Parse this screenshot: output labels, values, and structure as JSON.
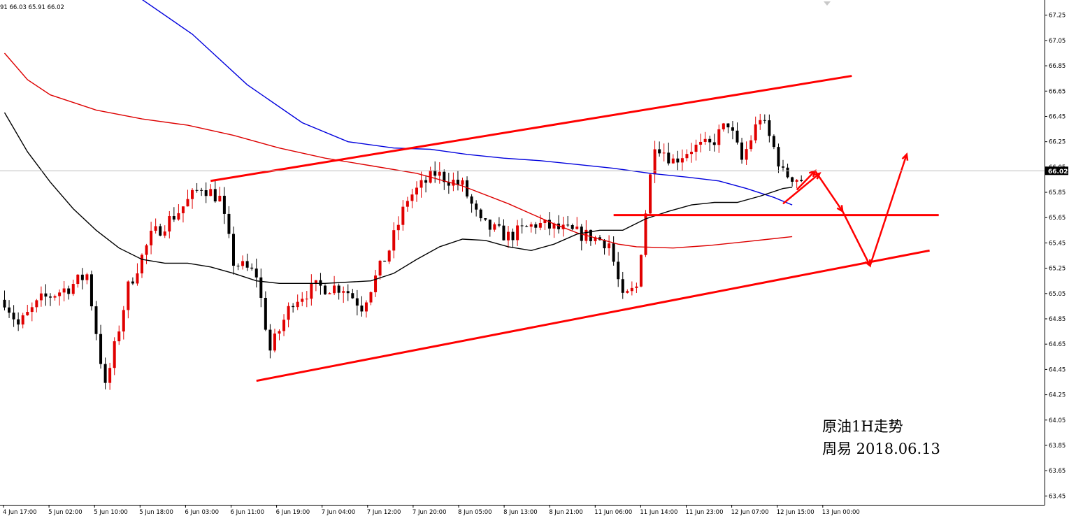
{
  "chart_data": {
    "type": "candlestick",
    "ohlc_header": "91 66.03 65.91 66.02",
    "ylim": [
      63.38,
      67.37
    ],
    "y_ticks": [
      "67.25",
      "67.05",
      "66.85",
      "66.65",
      "66.45",
      "66.25",
      "66.05",
      "65.85",
      "65.65",
      "65.45",
      "65.25",
      "65.05",
      "64.85",
      "64.65",
      "64.45",
      "64.25",
      "64.05",
      "63.85",
      "63.65",
      "63.45"
    ],
    "x_ticks": [
      "4 Jun 17:00",
      "5 Jun 02:00",
      "5 Jun 10:00",
      "5 Jun 18:00",
      "6 Jun 03:00",
      "6 Jun 11:00",
      "6 Jun 19:00",
      "7 Jun 04:00",
      "7 Jun 12:00",
      "7 Jun 20:00",
      "8 Jun 05:00",
      "8 Jun 13:00",
      "8 Jun 21:00",
      "11 Jun 06:00",
      "11 Jun 14:00",
      "11 Jun 23:00",
      "12 Jun 07:00",
      "12 Jun 15:00",
      "13 Jun 00:00"
    ],
    "bar_count": 175,
    "last_price": "66.02",
    "last_price_value": 66.02,
    "candle_up_color": "#e00000",
    "candle_down_color": "#000000",
    "bull_color": "#ff0000",
    "grid": false,
    "legend": "none",
    "moving_averages": [
      {
        "color": "#0000dd",
        "points": [
          [
            29,
            67.4
          ],
          [
            41,
            67.1
          ],
          [
            53,
            66.7
          ],
          [
            65,
            66.4
          ],
          [
            75,
            66.25
          ],
          [
            85,
            66.2
          ],
          [
            93,
            66.19
          ],
          [
            101,
            66.15
          ],
          [
            109,
            66.12
          ],
          [
            117,
            66.1
          ],
          [
            125,
            66.07
          ],
          [
            133,
            66.04
          ],
          [
            141,
            66.0
          ],
          [
            149,
            65.97
          ],
          [
            156,
            65.94
          ],
          [
            162,
            65.88
          ],
          [
            168,
            65.81
          ],
          [
            172,
            65.75
          ]
        ]
      },
      {
        "color": "#dd0000",
        "points": [
          [
            0,
            66.95
          ],
          [
            5,
            66.74
          ],
          [
            10,
            66.62
          ],
          [
            20,
            66.5
          ],
          [
            30,
            66.43
          ],
          [
            40,
            66.38
          ],
          [
            50,
            66.3
          ],
          [
            60,
            66.2
          ],
          [
            70,
            66.12
          ],
          [
            80,
            66.06
          ],
          [
            90,
            66.0
          ],
          [
            100,
            65.9
          ],
          [
            110,
            65.76
          ],
          [
            120,
            65.6
          ],
          [
            125,
            65.53
          ],
          [
            130,
            65.48
          ],
          [
            134,
            65.44
          ],
          [
            138,
            65.42
          ],
          [
            146,
            65.41
          ],
          [
            154,
            65.43
          ],
          [
            162,
            65.46
          ],
          [
            167,
            65.48
          ],
          [
            172,
            65.5
          ]
        ]
      },
      {
        "color": "#000000",
        "points": [
          [
            0,
            66.48
          ],
          [
            5,
            66.17
          ],
          [
            10,
            65.93
          ],
          [
            15,
            65.72
          ],
          [
            20,
            65.55
          ],
          [
            25,
            65.41
          ],
          [
            30,
            65.32
          ],
          [
            35,
            65.29
          ],
          [
            40,
            65.29
          ],
          [
            45,
            65.26
          ],
          [
            50,
            65.21
          ],
          [
            55,
            65.15
          ],
          [
            60,
            65.13
          ],
          [
            70,
            65.13
          ],
          [
            80,
            65.15
          ],
          [
            85,
            65.21
          ],
          [
            90,
            65.32
          ],
          [
            95,
            65.42
          ],
          [
            100,
            65.48
          ],
          [
            105,
            65.47
          ],
          [
            110,
            65.42
          ],
          [
            115,
            65.39
          ],
          [
            120,
            65.44
          ],
          [
            125,
            65.52
          ],
          [
            130,
            65.55
          ],
          [
            135,
            65.55
          ],
          [
            140,
            65.64
          ],
          [
            145,
            65.7
          ],
          [
            150,
            65.75
          ],
          [
            155,
            65.77
          ],
          [
            160,
            65.77
          ],
          [
            165,
            65.82
          ],
          [
            170,
            65.88
          ],
          [
            172,
            65.89
          ]
        ]
      }
    ],
    "annotations": {
      "trend_lines": [
        {
          "from": [
            45,
            65.94
          ],
          "to": [
            185,
            66.77
          ]
        },
        {
          "from": [
            55,
            64.36
          ],
          "to": [
            202,
            65.39
          ]
        },
        {
          "from": [
            133,
            65.67
          ],
          "to": [
            204,
            65.67
          ]
        }
      ],
      "arrows": [
        {
          "from": [
            173,
            65.87
          ],
          "to": [
            177,
            66.02
          ]
        },
        {
          "from": [
            177,
            66.02
          ],
          "to": [
            183,
            65.7
          ]
        },
        {
          "from": [
            183,
            65.7
          ],
          "to": [
            189,
            65.27
          ]
        },
        {
          "from": [
            189,
            65.27
          ],
          "to": [
            197,
            66.15
          ]
        }
      ],
      "extra_arrow": {
        "from": [
          170,
          65.76
        ],
        "to": [
          178,
          66.0
        ]
      }
    },
    "title_lines": [
      "原油1H走势",
      "周易  2018.06.13"
    ]
  }
}
